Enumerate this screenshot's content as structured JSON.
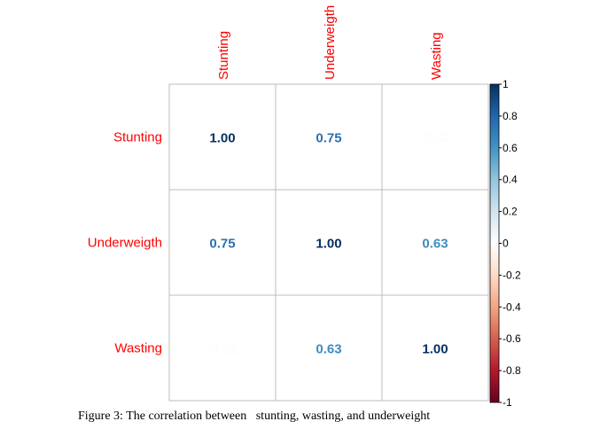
{
  "chart_data": {
    "type": "heatmap",
    "variables": [
      "Stunting",
      "Underweigth",
      "Wasting"
    ],
    "matrix": [
      [
        1.0,
        0.75,
        -0.02
      ],
      [
        0.75,
        1.0,
        0.63
      ],
      [
        -0.02,
        0.63,
        1.0
      ]
    ],
    "cell_labels": [
      [
        "1.00",
        "0.75",
        "-0.02"
      ],
      [
        "0.75",
        "1.00",
        "0.63"
      ],
      [
        "-0.02",
        "0.63",
        "1.00"
      ]
    ],
    "colorbar": {
      "range": [
        -1,
        1
      ],
      "ticks": [
        1,
        0.8,
        0.6,
        0.4,
        0.2,
        0,
        -0.2,
        -0.4,
        -0.6,
        -0.8,
        -1
      ],
      "tick_labels": [
        "1",
        "0.8",
        "0.6",
        "0.4",
        "0.2",
        "0",
        "-0.2",
        "-0.4",
        "-0.6",
        "-0.8",
        "-1"
      ],
      "colors": [
        "#67001F",
        "#B2182B",
        "#D6604D",
        "#F4A582",
        "#FDDBC7",
        "#FFFFFF",
        "#D1E5F0",
        "#92C5DE",
        "#4393C3",
        "#2166AC",
        "#053061"
      ]
    },
    "label_color": "#FF0000",
    "grid_color": "#BEBEBE"
  },
  "caption": "Figure 3: The correlation between   stunting, wasting, and underweight"
}
